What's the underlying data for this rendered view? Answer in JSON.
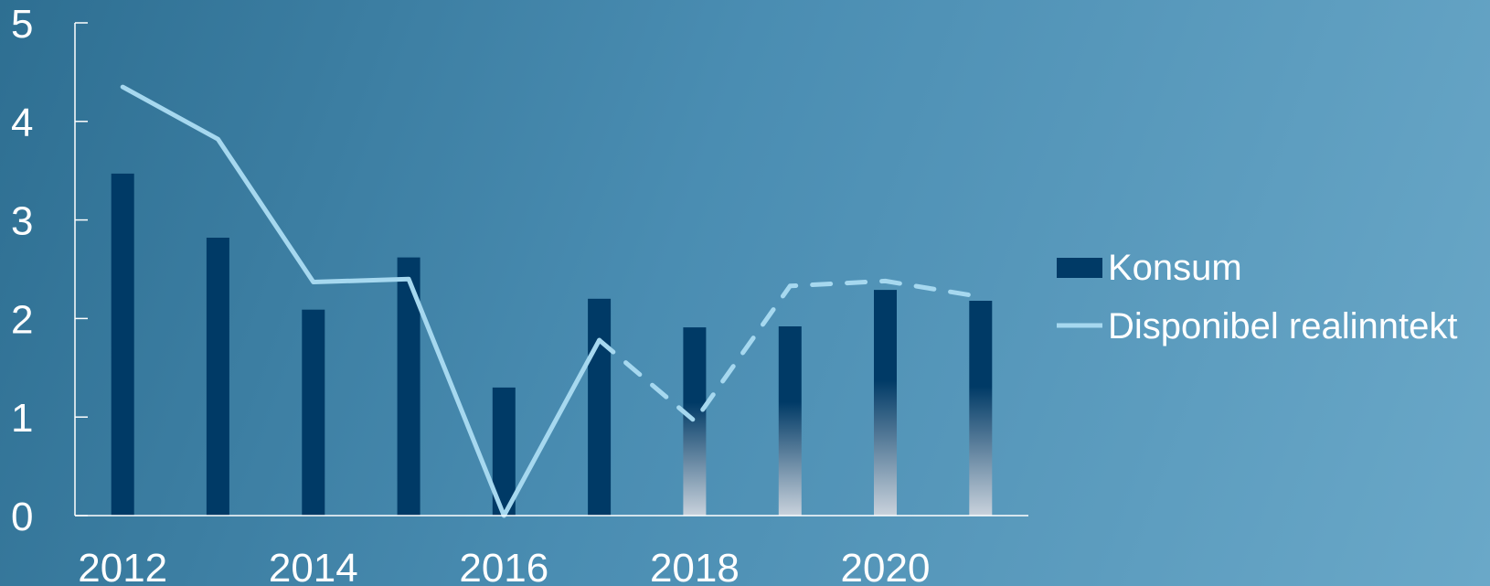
{
  "chart_data": {
    "type": "bar",
    "categories": [
      "2012",
      "2013",
      "2014",
      "2015",
      "2016",
      "2017",
      "2018",
      "2019",
      "2020",
      "2021"
    ],
    "x_tick_labels": [
      "2012",
      "2014",
      "2016",
      "2018",
      "2020"
    ],
    "y_tick_labels": [
      "0",
      "1",
      "2",
      "3",
      "4",
      "5"
    ],
    "ylim": [
      0,
      5
    ],
    "grid": false,
    "legend_position": "right",
    "series": [
      {
        "name": "Konsum",
        "kind": "bar",
        "color": "#003a66",
        "values": [
          3.47,
          2.82,
          2.09,
          2.62,
          1.3,
          2.2,
          1.91,
          1.92,
          2.29,
          2.18
        ],
        "projected_from_index": 6
      },
      {
        "name": "Disponibel realinntekt",
        "kind": "line",
        "color": "#a6d8ef",
        "values": [
          4.35,
          3.82,
          2.37,
          2.4,
          0.0,
          1.78,
          0.96,
          2.33,
          2.38,
          2.22
        ],
        "dashed_from_index": 5
      }
    ]
  }
}
